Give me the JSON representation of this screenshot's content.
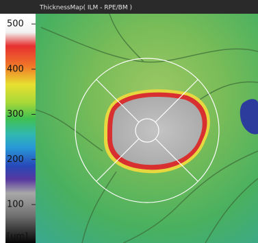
{
  "header": {
    "title": "ThicknessMap( ILM - RPE/BM )"
  },
  "colorbar": {
    "ticks": [
      500,
      400,
      300,
      200,
      100
    ],
    "unit": "[um]"
  }
}
